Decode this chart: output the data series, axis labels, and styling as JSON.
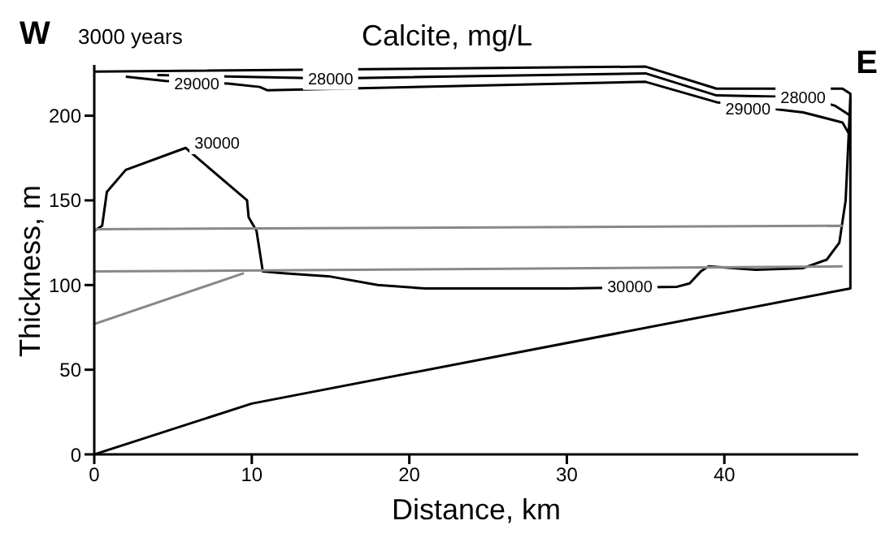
{
  "chart_data": {
    "type": "line",
    "title": "Calcite,  mg/L",
    "xlabel": "Distance, km",
    "ylabel": "Thickness, m",
    "xlim": [
      0,
      48.5
    ],
    "xticks": [
      0,
      10,
      20,
      30,
      40
    ],
    "ylim": [
      0,
      230
    ],
    "yticks": [
      0,
      50,
      100,
      150,
      200
    ],
    "grid": false,
    "marker": "none",
    "annotations": [
      "W",
      "3000 years",
      "E",
      {
        "text": "30000",
        "x": 7.8,
        "y": 184
      },
      {
        "text": "30000",
        "x": 34,
        "y": 99
      },
      {
        "text": "29000",
        "x": 6.5,
        "y": 219
      },
      {
        "text": "28000",
        "x": 15,
        "y": 222
      },
      {
        "text": "28000",
        "x": 45,
        "y": 211
      },
      {
        "text": "29000",
        "x": 41.5,
        "y": 204
      }
    ],
    "series": [
      {
        "color": "#000000",
        "x": [
          0,
          35,
          39.5,
          47.5,
          48,
          48,
          10,
          0
        ],
        "values": [
          226,
          229,
          216,
          216,
          213,
          98,
          30,
          0
        ]
      },
      {
        "color": "#000000",
        "x": [
          4,
          15,
          35,
          39.5,
          45,
          47,
          48
        ],
        "values": [
          224,
          222,
          225,
          212,
          211,
          206,
          200
        ]
      },
      {
        "color": "#000000",
        "x": [
          2,
          4.5,
          8.5,
          10.5,
          11,
          35,
          39.5,
          45,
          47.5,
          48
        ],
        "values": [
          223,
          220.5,
          219,
          217,
          215,
          220,
          208,
          202,
          196,
          188
        ]
      },
      {
        "color": "#000000",
        "x": [
          0,
          0.5,
          0.8,
          2,
          5.8,
          9.7,
          9.8,
          10.3,
          10.5,
          10.7,
          12,
          15,
          18,
          21,
          30,
          37,
          37.8,
          38.5,
          39,
          42,
          45,
          46.5,
          47.3,
          47.7,
          47.9,
          48
        ],
        "values": [
          132,
          135,
          155,
          168,
          181,
          150,
          140,
          132,
          120,
          108,
          107,
          105,
          100,
          98,
          98,
          99,
          101,
          108,
          111,
          109,
          110,
          115,
          125,
          150,
          190,
          210
        ]
      },
      {
        "color": "#888888",
        "x": [
          0,
          47.5
        ],
        "values": [
          133,
          135
        ]
      },
      {
        "color": "#888888",
        "x": [
          0,
          47.5
        ],
        "values": [
          108,
          111
        ]
      },
      {
        "color": "#888888",
        "x": [
          0,
          9.5
        ],
        "values": [
          77,
          107
        ]
      }
    ]
  }
}
